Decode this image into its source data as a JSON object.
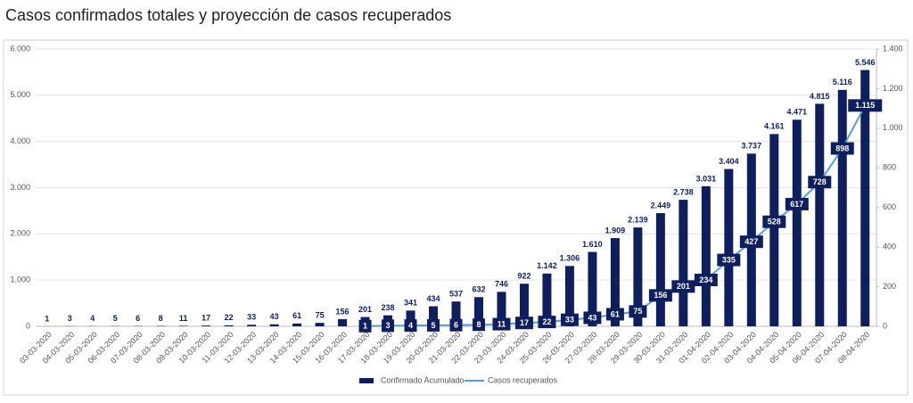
{
  "chart_data": {
    "type": "bar-line",
    "title": "Casos confirmados totales y proyección de casos recuperados",
    "categories": [
      "03-03-2020",
      "04-03-2020",
      "05-03-2020",
      "06-03-2020",
      "07-03-2020",
      "08-03-2020",
      "09-03-2020",
      "10-03-2020",
      "11-03-2020",
      "12-03-2020",
      "13-03-2020",
      "14-03-2020",
      "15-03-2020",
      "16-03-2020",
      "17-03-2020",
      "18-03-2020",
      "19-03-2020",
      "20-03-2020",
      "21-03-2020",
      "22-03-2020",
      "23-03-2020",
      "24-03-2020",
      "25-03-2020",
      "26-03-2020",
      "27-03-2020",
      "28-03-2020",
      "29-03-2020",
      "30-03-2020",
      "31-03-2020",
      "01-04-2020",
      "02-04-2020",
      "03-04-2020",
      "04-04-2020",
      "05-04-2020",
      "06-04-2020",
      "07-04-2020",
      "08-04-2020"
    ],
    "series": [
      {
        "name": "Confirmado Acumulado",
        "color": "#0f1f5e",
        "type": "bar",
        "values": [
          1,
          3,
          4,
          5,
          6,
          8,
          11,
          17,
          22,
          33,
          43,
          61,
          75,
          156,
          201,
          238,
          341,
          434,
          537,
          632,
          746,
          922,
          1142,
          1306,
          1610,
          1909,
          2139,
          2449,
          2738,
          3031,
          3404,
          3737,
          4161,
          4471,
          4815,
          5116,
          5546
        ],
        "value_labels": [
          "1",
          "3",
          "4",
          "5",
          "6",
          "8",
          "11",
          "17",
          "22",
          "33",
          "43",
          "61",
          "75",
          "156",
          "201",
          "238",
          "341",
          "434",
          "537",
          "632",
          "746",
          "922",
          "1.142",
          "1.306",
          "1.610",
          "1.909",
          "2.139",
          "2.449",
          "2.738",
          "3.031",
          "3.404",
          "3.737",
          "4.161",
          "4.471",
          "4.815",
          "5.116",
          "5.546"
        ]
      },
      {
        "name": "Casos recuperados",
        "color": "#5b9bd5",
        "type": "line",
        "axis": "y2",
        "values": [
          null,
          null,
          null,
          null,
          null,
          null,
          null,
          null,
          null,
          null,
          null,
          null,
          null,
          null,
          1,
          3,
          4,
          5,
          6,
          8,
          11,
          17,
          22,
          33,
          43,
          61,
          75,
          156,
          201,
          234,
          335,
          427,
          528,
          617,
          728,
          898,
          1115
        ],
        "value_labels": [
          null,
          null,
          null,
          null,
          null,
          null,
          null,
          null,
          null,
          null,
          null,
          null,
          null,
          null,
          "1",
          "3",
          "4",
          "5",
          "6",
          "8",
          "11",
          "17",
          "22",
          "33",
          "43",
          "61",
          "75",
          "156",
          "201",
          "234",
          "335",
          "427",
          "528",
          "617",
          "728",
          "898",
          "1.115"
        ]
      }
    ],
    "ylim": [
      0,
      6000
    ],
    "yticks": [
      0,
      {
        "value": 1000,
        "label": "1.000"
      },
      {
        "value": 2000,
        "label": "2.000"
      },
      {
        "value": 3000,
        "label": "3.000"
      },
      {
        "value": 4000,
        "label": "4.000"
      },
      {
        "value": 5000,
        "label": "5.000"
      },
      {
        "value": 6000,
        "label": "6.000"
      }
    ],
    "y2lim": [
      0,
      1400
    ],
    "y2ticks": [
      0,
      200,
      400,
      600,
      800,
      {
        "value": 1000,
        "label": "1.000"
      },
      {
        "value": 1200,
        "label": "1.200"
      },
      {
        "value": 1400,
        "label": "1.400"
      }
    ],
    "grid": true
  }
}
